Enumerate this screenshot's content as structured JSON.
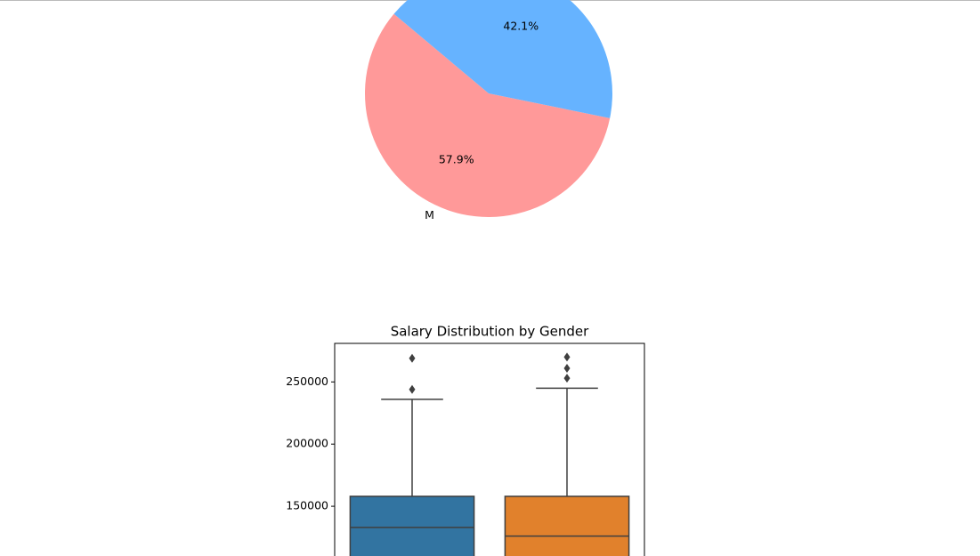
{
  "chart_data": [
    {
      "type": "pie",
      "categories": [
        "M",
        null
      ],
      "values": [
        57.9,
        42.1
      ],
      "value_labels": [
        "57.9%",
        "42.1%"
      ],
      "colors": [
        "#ff9999",
        "#66b3ff"
      ]
    },
    {
      "type": "box",
      "title": "Salary Distribution by Gender",
      "ylim": [
        110000,
        281000
      ],
      "yticks": [
        150000,
        200000,
        250000
      ],
      "boxes": [
        {
          "color": "#3274a1",
          "q3": 158000,
          "median": 133000,
          "whishi": 236000,
          "fliers": [
            269000,
            244000
          ]
        },
        {
          "color": "#e1812c",
          "q3": 158000,
          "median": 126000,
          "whishi": 245000,
          "fliers": [
            270000,
            261000,
            253000
          ]
        }
      ]
    }
  ]
}
